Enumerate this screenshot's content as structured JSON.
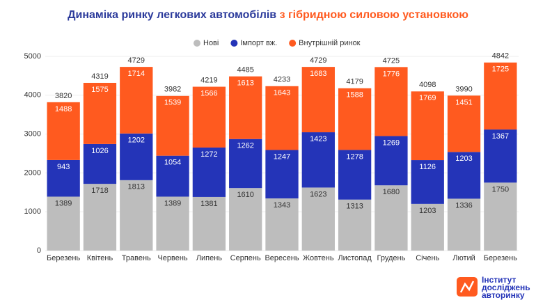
{
  "chart_data": {
    "type": "stacked_bar",
    "title": "Динаміка ринку легкових автомобілів",
    "title_highlight": "з гібридною силовою установкою",
    "categories": [
      "Березень",
      "Квітень",
      "Травень",
      "Червень",
      "Липень",
      "Серпень",
      "Вересень",
      "Жовтень",
      "Листопад",
      "Грудень",
      "Січень",
      "Лютий",
      "Березень"
    ],
    "series": [
      {
        "name": "Нові",
        "color": "#bdbdbd",
        "label_color": "#333333",
        "values": [
          1389,
          1718,
          1813,
          1389,
          1381,
          1610,
          1343,
          1623,
          1313,
          1680,
          1203,
          1336,
          1750
        ]
      },
      {
        "name": "Імпорт вж.",
        "color": "#2434b8",
        "label_color": "#ffffff",
        "values": [
          943,
          1026,
          1202,
          1054,
          1272,
          1262,
          1247,
          1423,
          1278,
          1269,
          1126,
          1203,
          1367
        ]
      },
      {
        "name": "Внутрішній ринок",
        "color": "#ff5a1f",
        "label_color": "#ffffff",
        "values": [
          1488,
          1575,
          1714,
          1539,
          1566,
          1613,
          1643,
          1683,
          1588,
          1776,
          1769,
          1451,
          1725
        ]
      }
    ],
    "totals": [
      3820,
      4319,
      4729,
      3982,
      4219,
      4485,
      4233,
      4729,
      4179,
      4725,
      4098,
      3990,
      4842
    ],
    "ylim": [
      0,
      5000
    ],
    "yticks": [
      0,
      1000,
      2000,
      3000,
      4000,
      5000
    ],
    "grid": true,
    "legend": "top"
  },
  "logo": [
    "Інститут",
    "досліджень",
    "авторинку"
  ]
}
